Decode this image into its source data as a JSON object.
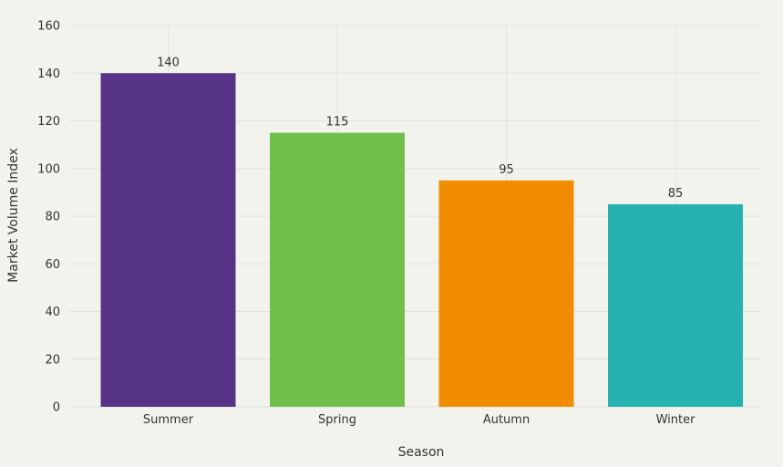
{
  "chart_data": {
    "type": "bar",
    "categories": [
      "Summer",
      "Spring",
      "Autumn",
      "Winter"
    ],
    "values": [
      140,
      115,
      95,
      85
    ],
    "colors": [
      "#573487",
      "#70c04b",
      "#f28c00",
      "#26b3b0"
    ],
    "data_labels": [
      "140",
      "115",
      "95",
      "85"
    ],
    "title": "",
    "xlabel": "Season",
    "ylabel": "Market Volume Index",
    "ylim": [
      0,
      160
    ],
    "yticks": [
      0,
      20,
      40,
      60,
      80,
      100,
      120,
      140,
      160
    ],
    "ytick_labels": [
      "0",
      "20",
      "40",
      "60",
      "80",
      "100",
      "120",
      "140",
      "160"
    ],
    "grid": true,
    "legend": false
  }
}
